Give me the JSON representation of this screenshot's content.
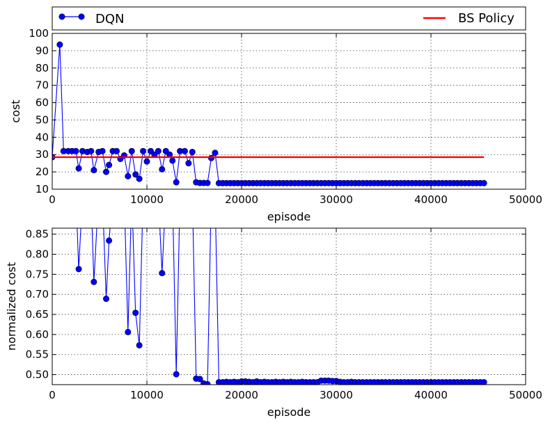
{
  "legend": {
    "placement": "top, spanning width",
    "entries": [
      {
        "label": "DQN",
        "color": "#0000ff",
        "marker": "circle"
      },
      {
        "label": "BS Policy",
        "color": "#ff0000",
        "marker": "none"
      }
    ]
  },
  "chart_data": [
    {
      "type": "line",
      "xlabel": "episode",
      "ylabel": "cost",
      "xlim": [
        0,
        50000
      ],
      "ylim": [
        10,
        100
      ],
      "xticks": [
        0,
        10000,
        20000,
        30000,
        40000,
        50000
      ],
      "yticks": [
        10,
        20,
        30,
        40,
        50,
        60,
        70,
        80,
        90,
        100
      ],
      "grid": true,
      "series": [
        {
          "name": "DQN",
          "color": "#0000ff",
          "marker": "circle",
          "x": [
            0,
            800,
            1200,
            1700,
            2100,
            2500,
            2800,
            3200,
            3700,
            4100,
            4400,
            4900,
            5300,
            5700,
            6000,
            6400,
            6800,
            7200,
            7600,
            8000,
            8400,
            8800,
            9200,
            9600,
            10000,
            10400,
            10800,
            11200,
            11600,
            12000,
            12400,
            12700,
            13100,
            13500,
            14000,
            14400,
            14800,
            15200,
            15600,
            16000,
            16400,
            16800,
            17200,
            17600,
            18000,
            18400,
            18800,
            19200,
            19600,
            20000,
            20400,
            20800,
            21200,
            21600,
            22000,
            22400,
            22800,
            23200,
            23600,
            24000,
            24400,
            24800,
            25200,
            25600,
            26000,
            26400,
            26800,
            27200,
            27600,
            28000,
            28400,
            28800,
            29200,
            29600,
            30000,
            30400,
            30800,
            31200,
            31600,
            32000,
            32400,
            32800,
            33200,
            33600,
            34000,
            34400,
            34800,
            35200,
            35600,
            36000,
            36400,
            36800,
            37200,
            37600,
            38000,
            38400,
            38800,
            39200,
            39600,
            40000,
            40400,
            40800,
            41200,
            41600,
            42000,
            42400,
            42800,
            43200,
            43600,
            44000,
            44400,
            44800,
            45200,
            45600
          ],
          "y": [
            28.5,
            93.5,
            32,
            32,
            32,
            32,
            22,
            32,
            31.5,
            32,
            21,
            31.5,
            32,
            20,
            24,
            32,
            32,
            27.5,
            29.5,
            17.5,
            32,
            18.5,
            16,
            32,
            26,
            32,
            30,
            32,
            21.5,
            32,
            30,
            26.5,
            14,
            32,
            32,
            25,
            31.5,
            14,
            13.6,
            13.6,
            13.6,
            28,
            31,
            13.5,
            13.5,
            13.5,
            13.5,
            13.5,
            13.5,
            13.5,
            13.5,
            13.5,
            13.5,
            13.5,
            13.5,
            13.5,
            13.5,
            13.5,
            13.5,
            13.5,
            13.5,
            13.5,
            13.5,
            13.5,
            13.5,
            13.5,
            13.5,
            13.5,
            13.5,
            13.5,
            13.5,
            13.5,
            13.5,
            13.5,
            13.5,
            13.5,
            13.5,
            13.5,
            13.5,
            13.5,
            13.5,
            13.5,
            13.5,
            13.5,
            13.5,
            13.5,
            13.5,
            13.5,
            13.5,
            13.5,
            13.5,
            13.5,
            13.5,
            13.5,
            13.5,
            13.5,
            13.5,
            13.5,
            13.5,
            13.5,
            13.5,
            13.5,
            13.5,
            13.5,
            13.5,
            13.5,
            13.5,
            13.5,
            13.5,
            13.5,
            13.5,
            13.5,
            13.5,
            13.5
          ]
        },
        {
          "name": "BS Policy",
          "color": "#ff0000",
          "marker": "none",
          "x": [
            0,
            45600
          ],
          "y": [
            28.5,
            28.5
          ]
        }
      ]
    },
    {
      "type": "line",
      "xlabel": "episode",
      "ylabel": "normalized cost",
      "xlim": [
        0,
        50000
      ],
      "ylim": [
        0.475,
        0.865
      ],
      "xticks": [
        0,
        10000,
        20000,
        30000,
        40000,
        50000
      ],
      "yticks": [
        0.5,
        0.55,
        0.6,
        0.65,
        0.7,
        0.75,
        0.8,
        0.85
      ],
      "grid": true,
      "series": [
        {
          "name": "DQN",
          "color": "#0000ff",
          "marker": "circle",
          "x": [
            2500,
            2800,
            3200,
            4100,
            4400,
            4900,
            5300,
            5700,
            6000,
            6400,
            7600,
            8000,
            8400,
            8800,
            9200,
            9600,
            11200,
            11600,
            12000,
            12700,
            13100,
            13500,
            14800,
            15200,
            15600,
            16000,
            16400,
            16800,
            17200,
            17600,
            18000,
            18400,
            18800,
            19200,
            19600,
            20000,
            20400,
            20800,
            21200,
            21600,
            22000,
            22400,
            22800,
            23200,
            23600,
            24000,
            24400,
            24800,
            25200,
            25600,
            26000,
            26400,
            26800,
            27200,
            27600,
            28000,
            28400,
            28800,
            29200,
            29600,
            30000,
            30400,
            30800,
            31200,
            31600,
            32000,
            32400,
            32800,
            33200,
            33600,
            34000,
            34400,
            34800,
            35200,
            35600,
            36000,
            36400,
            36800,
            37200,
            37600,
            38000,
            38400,
            38800,
            39200,
            39600,
            40000,
            40400,
            40800,
            41200,
            41600,
            42000,
            42400,
            42800,
            43200,
            43600,
            44000,
            44400,
            44800,
            45200,
            45600
          ],
          "y": [
            0.95,
            0.763,
            0.95,
            0.95,
            0.731,
            0.95,
            0.95,
            0.689,
            0.834,
            0.95,
            0.95,
            0.606,
            0.95,
            0.654,
            0.573,
            0.95,
            0.95,
            0.753,
            0.95,
            0.95,
            0.501,
            0.95,
            0.95,
            0.49,
            0.489,
            0.478,
            0.476,
            0.95,
            0.95,
            0.481,
            0.481,
            0.482,
            0.481,
            0.482,
            0.481,
            0.483,
            0.483,
            0.482,
            0.481,
            0.483,
            0.481,
            0.482,
            0.481,
            0.481,
            0.482,
            0.481,
            0.482,
            0.481,
            0.482,
            0.481,
            0.481,
            0.482,
            0.481,
            0.481,
            0.481,
            0.481,
            0.485,
            0.485,
            0.485,
            0.484,
            0.484,
            0.482,
            0.481,
            0.481,
            0.482,
            0.481,
            0.481,
            0.481,
            0.481,
            0.481,
            0.481,
            0.481,
            0.481,
            0.481,
            0.481,
            0.481,
            0.481,
            0.481,
            0.481,
            0.481,
            0.481,
            0.481,
            0.481,
            0.481,
            0.481,
            0.481,
            0.481,
            0.481,
            0.481,
            0.481,
            0.481,
            0.481,
            0.481,
            0.481,
            0.481,
            0.481,
            0.481,
            0.481,
            0.481,
            0.481
          ]
        }
      ]
    }
  ]
}
